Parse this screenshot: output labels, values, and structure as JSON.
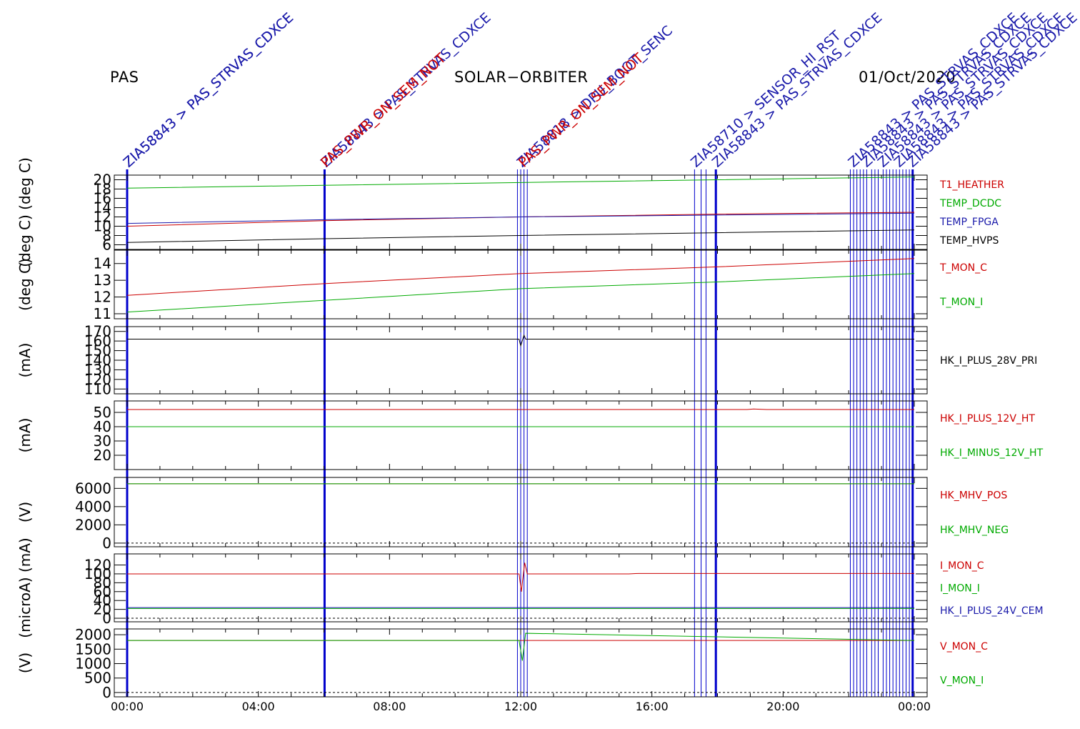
{
  "header": {
    "instrument": "PAS",
    "mission": "SOLAR−ORBITER",
    "date": "01/Oct/2020"
  },
  "colors": {
    "red": "#cc0000",
    "green": "#00aa00",
    "blue": "#1a1aaa",
    "black": "#000000",
    "event_line": "#0000cc"
  },
  "events": {
    "labels": [
      {
        "time": 0.0,
        "text": "ZIA58843 > PAS_STRVAS_CDXCE",
        "color": "#1a1aaa"
      },
      {
        "time": 0.0,
        "text": "ZIA58843 > PAS_STRVAS_CDXCE",
        "color": "#1a1aaa"
      },
      {
        "time": 6.02,
        "text": "ZIA58843 > PAS_STRVAS_CDXCE",
        "color": "#1a1aaa"
      },
      {
        "time": 6.02,
        "text": "PAS_PWR_ON_SEM_NOT",
        "color": "#cc0000"
      },
      {
        "time": 12.0,
        "text": "ZIA58818 > DPU_BOOT_SENC",
        "color": "#1a1aaa"
      },
      {
        "time": 12.05,
        "text": "PAS_PWR_ON_SEM_NOT",
        "color": "#cc0000"
      },
      {
        "time": 17.3,
        "text": "ZIA58710 > SENSOR_HI_RST",
        "color": "#1a1aaa"
      },
      {
        "time": 17.95,
        "text": "ZIA58843 > PAS_STRVAS_CDXCE",
        "color": "#1a1aaa"
      },
      {
        "time": 22.1,
        "text": "ZIA58843 > PAS_STRVAS_CDXCE",
        "color": "#1a1aaa"
      },
      {
        "time": 22.5,
        "text": "ZIA58843 > PAS_STRVAS_CDXCE",
        "color": "#1a1aaa"
      },
      {
        "time": 23.0,
        "text": "ZIA58843 > PAS_STRVAS_CDXCE",
        "color": "#1a1aaa"
      },
      {
        "time": 23.5,
        "text": "ZIA58843 > PAS_STRVAS_CDXCE",
        "color": "#1a1aaa"
      },
      {
        "time": 23.9,
        "text": "ZIA58843 > PAS_STRVAS_CDXCE",
        "color": "#1a1aaa"
      }
    ],
    "thick_lines": [
      0.0,
      6.02,
      17.95,
      23.95
    ],
    "thin_lines": [
      11.9,
      12.0,
      12.1,
      12.2,
      17.3,
      17.5,
      17.65,
      22.05,
      22.15,
      22.25,
      22.35,
      22.45,
      22.55,
      22.7,
      22.8,
      22.9,
      23.05,
      23.15,
      23.25,
      23.35,
      23.45,
      23.55,
      23.65,
      23.75,
      23.85
    ]
  },
  "chart_data": [
    {
      "type": "line",
      "ylabel": "(deg C)  (deg C)",
      "ylim": [
        5,
        21
      ],
      "yticks": [
        6,
        8,
        10,
        12,
        14,
        16,
        18,
        20
      ],
      "xlim": [
        0,
        24
      ],
      "series": [
        {
          "name": "T1_HEATHER",
          "color": "#cc0000",
          "x": [
            0,
            6,
            12,
            18,
            24
          ],
          "y": [
            10.0,
            11.2,
            12.0,
            12.6,
            13.0
          ]
        },
        {
          "name": "TEMP_DCDC",
          "color": "#00aa00",
          "x": [
            0,
            6,
            12,
            18,
            24
          ],
          "y": [
            18.2,
            18.8,
            19.4,
            20.0,
            20.6
          ]
        },
        {
          "name": "TEMP_FPGA",
          "color": "#1a1aaa",
          "x": [
            0,
            6,
            12,
            18,
            24
          ],
          "y": [
            10.6,
            11.4,
            12.0,
            12.4,
            12.8
          ]
        },
        {
          "name": "TEMP_HVPS",
          "color": "#000000",
          "x": [
            0,
            6,
            12,
            18,
            24
          ],
          "y": [
            6.5,
            7.3,
            8.0,
            8.6,
            9.2
          ]
        }
      ]
    },
    {
      "type": "line",
      "ylabel": "(deg C)",
      "ylim": [
        10.7,
        14.8
      ],
      "yticks": [
        11,
        12,
        13,
        14
      ],
      "xlim": [
        0,
        24
      ],
      "series": [
        {
          "name": "T_MON_C",
          "color": "#cc0000",
          "x": [
            0,
            6,
            12,
            18,
            24
          ],
          "y": [
            12.1,
            12.8,
            13.4,
            13.8,
            14.3
          ]
        },
        {
          "name": "T_MON_I",
          "color": "#00aa00",
          "x": [
            0,
            6,
            12,
            18,
            24
          ],
          "y": [
            11.1,
            11.8,
            12.5,
            12.9,
            13.4
          ]
        }
      ]
    },
    {
      "type": "line",
      "ylabel": "(mA)",
      "ylim": [
        105,
        175
      ],
      "yticks": [
        110,
        120,
        130,
        140,
        150,
        160,
        170
      ],
      "xlim": [
        0,
        24
      ],
      "series": [
        {
          "name": "HK_I_PLUS_28V_PRI",
          "color": "#000000",
          "x": [
            0,
            6,
            11.95,
            12.0,
            12.1,
            12.15,
            18,
            24
          ],
          "y": [
            162,
            162,
            162,
            155,
            166,
            162,
            162,
            162
          ]
        }
      ]
    },
    {
      "type": "line",
      "ylabel": "(mA)",
      "ylim": [
        10,
        58
      ],
      "yticks": [
        20,
        30,
        40,
        50
      ],
      "xlim": [
        0,
        24
      ],
      "series": [
        {
          "name": "HK_I_PLUS_12V_HT",
          "color": "#cc0000",
          "x": [
            0,
            18.9,
            19.1,
            19.5,
            24
          ],
          "y": [
            52,
            52,
            52.4,
            52,
            52
          ]
        },
        {
          "name": "HK_I_MINUS_12V_HT",
          "color": "#00aa00",
          "x": [
            0,
            24
          ],
          "y": [
            40,
            40
          ]
        }
      ]
    },
    {
      "type": "line",
      "ylabel": "(V)",
      "ylim": [
        -400,
        7200
      ],
      "yticks": [
        0,
        2000,
        4000,
        6000
      ],
      "zero_line": true,
      "xlim": [
        0,
        24
      ],
      "series": [
        {
          "name": "HK_MHV_POS",
          "color": "#cc0000",
          "x": [
            0,
            24
          ],
          "y": [
            6500,
            6500
          ]
        },
        {
          "name": "HK_MHV_NEG",
          "color": "#00aa00",
          "x": [
            0,
            24
          ],
          "y": [
            6500,
            6500
          ]
        }
      ]
    },
    {
      "type": "line",
      "ylabel": "(microA) (mA)",
      "ylim": [
        -8,
        145
      ],
      "yticks": [
        0,
        20,
        40,
        60,
        80,
        100,
        120
      ],
      "zero_line": true,
      "xlim": [
        0,
        24
      ],
      "series": [
        {
          "name": "I_MON_C",
          "color": "#cc0000",
          "x": [
            0,
            11.95,
            12.02,
            12.12,
            12.2,
            15.3,
            15.6,
            24
          ],
          "y": [
            100,
            100,
            60,
            125,
            100,
            100,
            101,
            101
          ]
        },
        {
          "name": "I_MON_I",
          "color": "#00aa00",
          "x": [
            0,
            24
          ],
          "y": [
            22,
            22
          ]
        },
        {
          "name": "HK_I_PLUS_24V_CEM",
          "color": "#1a1aaa",
          "x": [
            0,
            24
          ],
          "y": [
            24,
            24
          ]
        }
      ]
    },
    {
      "type": "line",
      "ylabel": "(V)",
      "ylim": [
        -150,
        2200
      ],
      "yticks": [
        0,
        500,
        1000,
        1500,
        2000
      ],
      "zero_line": true,
      "xlim": [
        0,
        24
      ],
      "series": [
        {
          "name": "V_MON_C",
          "color": "#cc0000",
          "x": [
            0,
            24
          ],
          "y": [
            1800,
            1800
          ]
        },
        {
          "name": "V_MON_I",
          "color": "#00aa00",
          "x": [
            0,
            11.95,
            12.05,
            12.15,
            24
          ],
          "y": [
            1800,
            1800,
            1100,
            2050,
            1800
          ]
        }
      ]
    }
  ],
  "x_axis": {
    "ticks": [
      0,
      4,
      8,
      12,
      16,
      20,
      24
    ],
    "labels": [
      "00:00",
      "04:00",
      "08:00",
      "12:00",
      "16:00",
      "20:00",
      "00:00"
    ]
  }
}
